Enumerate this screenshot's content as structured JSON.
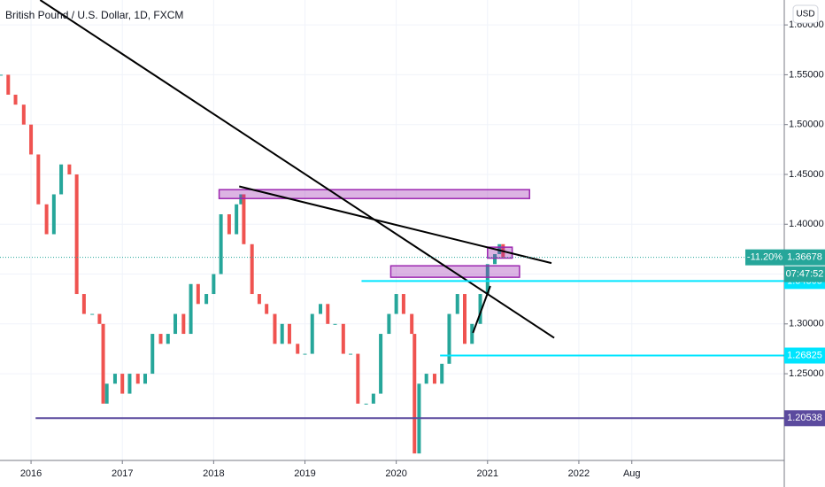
{
  "chart_data": {
    "type": "candlestick",
    "title": "British Pound / U.S. Dollar, 1D, FXCM",
    "currency": "USD",
    "x": [
      2015.67,
      2015.75,
      2015.83,
      2015.92,
      2016.0,
      2016.08,
      2016.17,
      2016.25,
      2016.33,
      2016.42,
      2016.5,
      2016.58,
      2016.67,
      2016.75,
      2016.79,
      2016.83,
      2016.92,
      2017.0,
      2017.08,
      2017.17,
      2017.25,
      2017.33,
      2017.42,
      2017.5,
      2017.58,
      2017.67,
      2017.75,
      2017.83,
      2017.92,
      2018.0,
      2018.08,
      2018.17,
      2018.25,
      2018.3,
      2018.33,
      2018.42,
      2018.5,
      2018.58,
      2018.67,
      2018.75,
      2018.83,
      2018.92,
      2019.0,
      2019.08,
      2019.17,
      2019.25,
      2019.33,
      2019.42,
      2019.5,
      2019.58,
      2019.67,
      2019.75,
      2019.83,
      2019.92,
      2020.0,
      2020.08,
      2020.17,
      2020.2,
      2020.25,
      2020.33,
      2020.42,
      2020.5,
      2020.58,
      2020.67,
      2020.75,
      2020.83,
      2020.92,
      2021.0,
      2021.08,
      2021.13,
      2021.17
    ],
    "values": [
      1.55,
      1.53,
      1.52,
      1.5,
      1.47,
      1.42,
      1.39,
      1.43,
      1.46,
      1.45,
      1.33,
      1.31,
      1.31,
      1.3,
      1.22,
      1.24,
      1.25,
      1.23,
      1.25,
      1.24,
      1.25,
      1.29,
      1.28,
      1.29,
      1.31,
      1.29,
      1.34,
      1.32,
      1.33,
      1.35,
      1.41,
      1.39,
      1.42,
      1.43,
      1.38,
      1.33,
      1.32,
      1.31,
      1.28,
      1.3,
      1.28,
      1.27,
      1.27,
      1.31,
      1.32,
      1.3,
      1.3,
      1.27,
      1.27,
      1.22,
      1.22,
      1.23,
      1.29,
      1.31,
      1.33,
      1.31,
      1.29,
      1.17,
      1.24,
      1.25,
      1.24,
      1.26,
      1.31,
      1.33,
      1.28,
      1.3,
      1.33,
      1.36,
      1.37,
      1.38,
      1.36678
    ],
    "up_color": "#26a69a",
    "down_color": "#ef5350",
    "xlim": [
      2015.66,
      2024.25
    ],
    "xticks": [
      2016,
      2017,
      2018,
      2019,
      2020,
      2021,
      2022,
      {
        "value": 2022.58,
        "label": "Aug"
      }
    ],
    "ylim": [
      1.163,
      1.625
    ],
    "yticks": [
      {
        "value": 1.25,
        "label": "1.25000"
      },
      {
        "value": 1.3,
        "label": "1.30000"
      },
      {
        "value": 1.35,
        "label": "1.35000"
      },
      {
        "value": 1.4,
        "label": "1.40000"
      },
      {
        "value": 1.45,
        "label": "1.45000"
      },
      {
        "value": 1.5,
        "label": "1.50000"
      },
      {
        "value": 1.55,
        "label": "1.55000"
      },
      {
        "value": 1.6,
        "label": "1.60000"
      }
    ],
    "grid": true,
    "trendlines": [
      {
        "x": [
          2016.1,
          2021.73
        ],
        "y": [
          1.625,
          1.286
        ],
        "color": "#000000"
      },
      {
        "x": [
          2018.28,
          2021.7
        ],
        "y": [
          1.438,
          1.361
        ],
        "color": "#000000"
      },
      {
        "x": [
          2020.84,
          2021.03
        ],
        "y": [
          1.291,
          1.338
        ],
        "color": "#000000"
      }
    ],
    "zones": [
      {
        "x": [
          2018.06,
          2021.46
        ],
        "y": [
          1.4258,
          1.4347
        ],
        "color": "#9c27b0"
      },
      {
        "x": [
          2019.94,
          2021.35
        ],
        "y": [
          1.3468,
          1.3583
        ],
        "color": "#9c27b0"
      },
      {
        "x": [
          2021.0,
          2021.27
        ],
        "y": [
          1.366,
          1.377
        ],
        "color": "#9c27b0"
      }
    ],
    "levels": [
      {
        "value": 1.34305,
        "x_start": 2019.62,
        "color": "#00e5ff"
      },
      {
        "value": 1.26825,
        "x_start": 2020.48,
        "color": "#00e5ff"
      },
      {
        "value": 1.20538,
        "x_start": 2016.05,
        "color": "#5b4a9e"
      }
    ],
    "last_price": 1.36678,
    "change": {
      "value": -11.2,
      "label": "-11.20%"
    },
    "countdown": "07:47:52",
    "last_color": "#26a69a"
  }
}
